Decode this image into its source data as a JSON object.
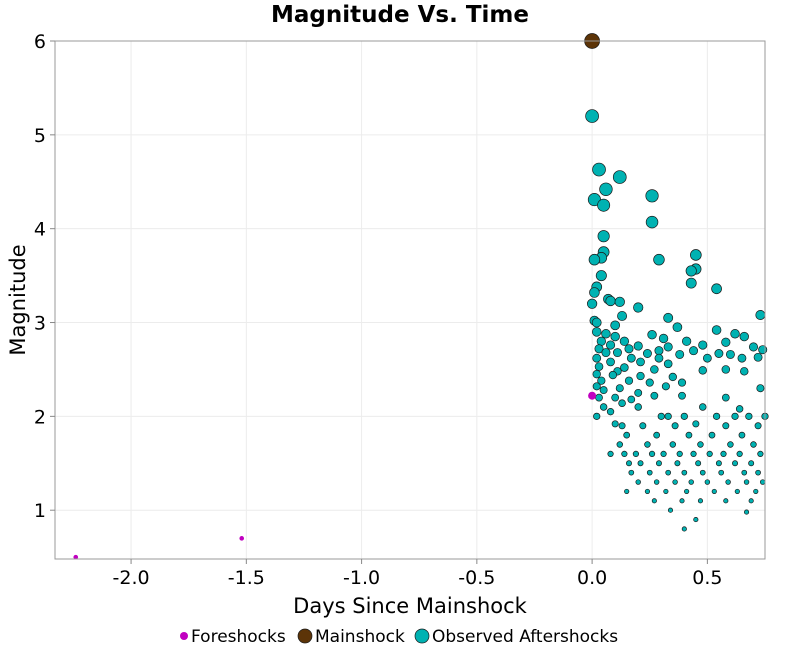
{
  "chart_data": {
    "type": "scatter",
    "title": "Magnitude Vs. Time",
    "xlabel": "Days Since Mainshock",
    "ylabel": "Magnitude",
    "xlim": [
      -2.33,
      0.75
    ],
    "ylim": [
      0.48,
      6.0
    ],
    "xticks": [
      -2.0,
      -1.5,
      -1.0,
      -0.5,
      0.0,
      0.5
    ],
    "xtick_labels": [
      "-2.0",
      "-1.5",
      "-1.0",
      "-0.5",
      "0.0",
      "0.5"
    ],
    "yticks": [
      1,
      2,
      3,
      4,
      5,
      6
    ],
    "ytick_labels": [
      "1",
      "2",
      "3",
      "4",
      "5",
      "6"
    ],
    "grid": true,
    "legend_position": "bottom",
    "series": [
      {
        "name": "Foreshocks",
        "color": "#c000c0",
        "points": [
          [
            -2.24,
            0.5
          ],
          [
            -1.52,
            0.7
          ],
          [
            0.0,
            2.22
          ]
        ]
      },
      {
        "name": "Mainshock",
        "color": "#5c3408",
        "points": [
          [
            0.0,
            6.0
          ]
        ]
      },
      {
        "name": "Observed Aftershocks",
        "color": "#00b2b2",
        "points": [
          [
            0.0,
            5.2
          ],
          [
            0.03,
            4.63
          ],
          [
            0.12,
            4.55
          ],
          [
            0.06,
            4.42
          ],
          [
            0.26,
            4.35
          ],
          [
            0.01,
            4.31
          ],
          [
            0.05,
            4.25
          ],
          [
            0.26,
            4.07
          ],
          [
            0.05,
            3.92
          ],
          [
            0.05,
            3.75
          ],
          [
            0.45,
            3.72
          ],
          [
            0.04,
            3.69
          ],
          [
            0.01,
            3.67
          ],
          [
            0.29,
            3.67
          ],
          [
            0.45,
            3.57
          ],
          [
            0.43,
            3.55
          ],
          [
            0.04,
            3.5
          ],
          [
            0.43,
            3.42
          ],
          [
            0.02,
            3.38
          ],
          [
            0.01,
            3.32
          ],
          [
            0.54,
            3.36
          ],
          [
            0.07,
            3.25
          ],
          [
            0.08,
            3.23
          ],
          [
            0.12,
            3.22
          ],
          [
            0.0,
            3.2
          ],
          [
            0.2,
            3.16
          ],
          [
            0.73,
            3.08
          ],
          [
            0.13,
            3.07
          ],
          [
            0.33,
            3.05
          ],
          [
            0.01,
            3.02
          ],
          [
            0.02,
            3.0
          ],
          [
            0.1,
            2.97
          ],
          [
            0.37,
            2.95
          ],
          [
            0.54,
            2.92
          ],
          [
            0.02,
            2.9
          ],
          [
            0.06,
            2.88
          ],
          [
            0.26,
            2.87
          ],
          [
            0.62,
            2.88
          ],
          [
            0.1,
            2.85
          ],
          [
            0.31,
            2.83
          ],
          [
            0.66,
            2.85
          ],
          [
            0.04,
            2.8
          ],
          [
            0.14,
            2.8
          ],
          [
            0.41,
            2.8
          ],
          [
            0.58,
            2.79
          ],
          [
            0.08,
            2.76
          ],
          [
            0.2,
            2.75
          ],
          [
            0.33,
            2.74
          ],
          [
            0.48,
            2.76
          ],
          [
            0.7,
            2.74
          ],
          [
            0.03,
            2.72
          ],
          [
            0.16,
            2.72
          ],
          [
            0.29,
            2.7
          ],
          [
            0.44,
            2.7
          ],
          [
            0.55,
            2.67
          ],
          [
            0.74,
            2.71
          ],
          [
            0.06,
            2.68
          ],
          [
            0.11,
            2.68
          ],
          [
            0.24,
            2.67
          ],
          [
            0.38,
            2.66
          ],
          [
            0.6,
            2.66
          ],
          [
            0.72,
            2.63
          ],
          [
            0.02,
            2.62
          ],
          [
            0.17,
            2.62
          ],
          [
            0.29,
            2.62
          ],
          [
            0.5,
            2.62
          ],
          [
            0.65,
            2.62
          ],
          [
            0.08,
            2.58
          ],
          [
            0.21,
            2.58
          ],
          [
            0.33,
            2.56
          ],
          [
            0.58,
            2.5
          ],
          [
            0.03,
            2.53
          ],
          [
            0.14,
            2.52
          ],
          [
            0.11,
            2.48
          ],
          [
            0.27,
            2.5
          ],
          [
            0.48,
            2.49
          ],
          [
            0.02,
            2.45
          ],
          [
            0.09,
            2.44
          ],
          [
            0.21,
            2.43
          ],
          [
            0.35,
            2.42
          ],
          [
            0.66,
            2.48
          ],
          [
            0.04,
            2.38
          ],
          [
            0.16,
            2.38
          ],
          [
            0.25,
            2.36
          ],
          [
            0.39,
            2.36
          ],
          [
            0.02,
            2.32
          ],
          [
            0.12,
            2.3
          ],
          [
            0.32,
            2.32
          ],
          [
            0.73,
            2.3
          ],
          [
            0.05,
            2.28
          ],
          [
            0.2,
            2.25
          ],
          [
            0.03,
            2.2
          ],
          [
            0.1,
            2.2
          ],
          [
            0.17,
            2.18
          ],
          [
            0.27,
            2.22
          ],
          [
            0.39,
            2.22
          ],
          [
            0.58,
            2.2
          ],
          [
            0.13,
            2.14
          ],
          [
            0.05,
            2.1
          ],
          [
            0.2,
            2.1
          ],
          [
            0.48,
            2.1
          ],
          [
            0.64,
            2.08
          ],
          [
            0.08,
            2.05
          ],
          [
            0.02,
            2.0
          ],
          [
            0.3,
            2.0
          ],
          [
            0.4,
            2.0
          ],
          [
            0.54,
            2.0
          ],
          [
            0.68,
            2.0
          ],
          [
            0.75,
            2.0
          ],
          [
            0.33,
            2.0
          ],
          [
            0.62,
            2.0
          ],
          [
            0.1,
            1.92
          ],
          [
            0.13,
            1.9
          ],
          [
            0.22,
            1.9
          ],
          [
            0.36,
            1.9
          ],
          [
            0.45,
            1.92
          ],
          [
            0.58,
            1.9
          ],
          [
            0.72,
            1.9
          ],
          [
            0.15,
            1.8
          ],
          [
            0.28,
            1.8
          ],
          [
            0.42,
            1.8
          ],
          [
            0.52,
            1.8
          ],
          [
            0.65,
            1.8
          ],
          [
            0.12,
            1.7
          ],
          [
            0.24,
            1.7
          ],
          [
            0.35,
            1.7
          ],
          [
            0.47,
            1.7
          ],
          [
            0.6,
            1.7
          ],
          [
            0.7,
            1.7
          ],
          [
            0.14,
            1.6
          ],
          [
            0.19,
            1.6
          ],
          [
            0.26,
            1.6
          ],
          [
            0.31,
            1.6
          ],
          [
            0.38,
            1.6
          ],
          [
            0.44,
            1.6
          ],
          [
            0.51,
            1.6
          ],
          [
            0.57,
            1.6
          ],
          [
            0.64,
            1.6
          ],
          [
            0.73,
            1.6
          ],
          [
            0.08,
            1.6
          ],
          [
            0.16,
            1.5
          ],
          [
            0.21,
            1.5
          ],
          [
            0.29,
            1.5
          ],
          [
            0.37,
            1.5
          ],
          [
            0.46,
            1.5
          ],
          [
            0.55,
            1.5
          ],
          [
            0.62,
            1.5
          ],
          [
            0.69,
            1.5
          ],
          [
            0.17,
            1.4
          ],
          [
            0.25,
            1.4
          ],
          [
            0.33,
            1.4
          ],
          [
            0.4,
            1.4
          ],
          [
            0.48,
            1.4
          ],
          [
            0.56,
            1.4
          ],
          [
            0.66,
            1.4
          ],
          [
            0.72,
            1.4
          ],
          [
            0.2,
            1.3
          ],
          [
            0.28,
            1.3
          ],
          [
            0.36,
            1.3
          ],
          [
            0.43,
            1.3
          ],
          [
            0.5,
            1.3
          ],
          [
            0.59,
            1.3
          ],
          [
            0.67,
            1.3
          ],
          [
            0.74,
            1.3
          ],
          [
            0.15,
            1.2
          ],
          [
            0.24,
            1.2
          ],
          [
            0.32,
            1.2
          ],
          [
            0.41,
            1.2
          ],
          [
            0.53,
            1.2
          ],
          [
            0.63,
            1.2
          ],
          [
            0.71,
            1.2
          ],
          [
            0.27,
            1.1
          ],
          [
            0.39,
            1.1
          ],
          [
            0.47,
            1.1
          ],
          [
            0.58,
            1.1
          ],
          [
            0.69,
            1.1
          ],
          [
            0.34,
            1.0
          ],
          [
            0.67,
            0.98
          ],
          [
            0.45,
            0.9
          ],
          [
            0.4,
            0.8
          ]
        ]
      }
    ]
  }
}
